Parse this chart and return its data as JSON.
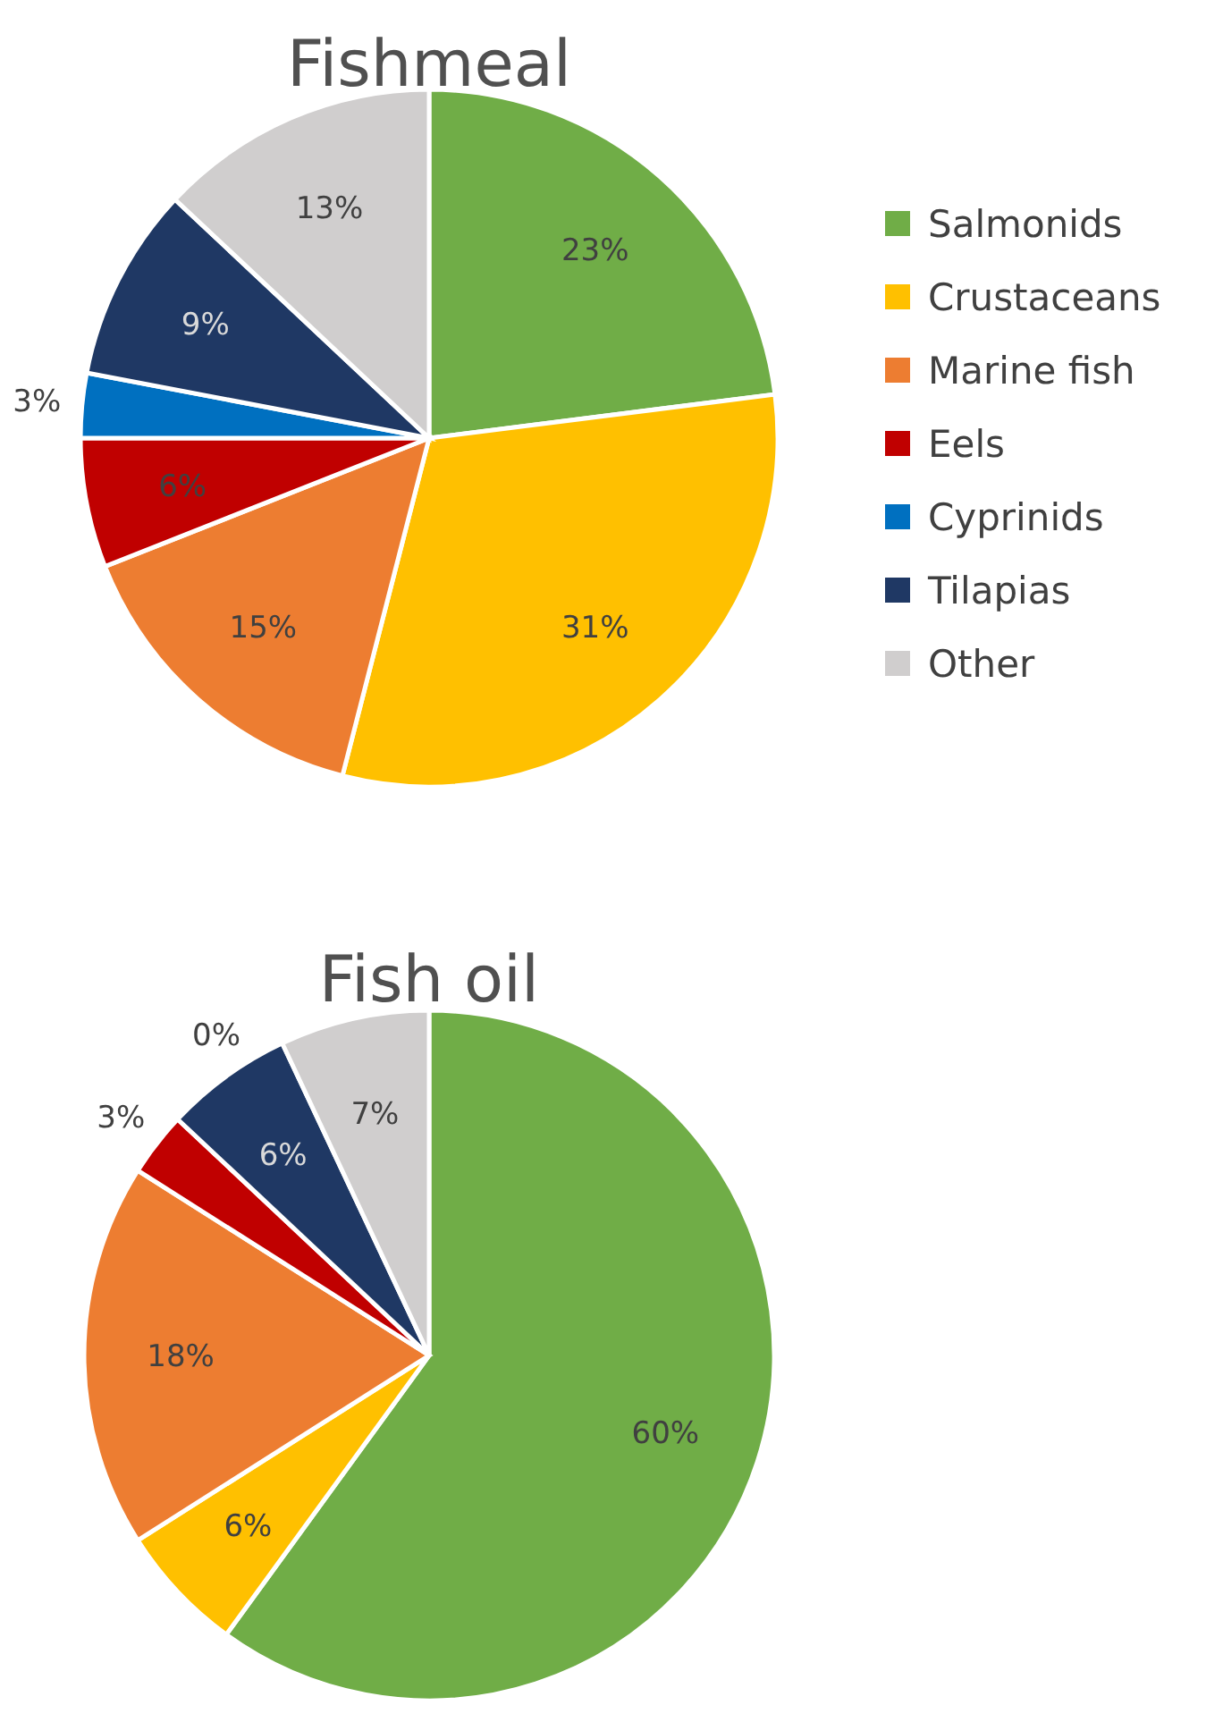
{
  "chart_data": [
    {
      "type": "pie",
      "title": "Fishmeal",
      "categories": [
        "Salmonids",
        "Crustaceans",
        "Marine fish",
        "Eels",
        "Cyprinids",
        "Tilapias",
        "Other"
      ],
      "values": [
        23,
        31,
        15,
        6,
        3,
        9,
        13
      ],
      "value_labels": [
        "23%",
        "31%",
        "15%",
        "6%",
        "3%",
        "9%",
        "13%"
      ],
      "colors": [
        "#70ad47",
        "#ffc000",
        "#ed7d31",
        "#c00000",
        "#0070c0",
        "#1f3864",
        "#d0cece"
      ],
      "legend": "right"
    },
    {
      "type": "pie",
      "title": "Fish oil",
      "categories": [
        null,
        null,
        null,
        null,
        null,
        null,
        null
      ],
      "values": [
        60,
        6,
        18,
        3,
        0,
        6,
        7
      ],
      "value_labels": [
        "60%",
        "6%",
        "18%",
        "3%",
        "0%",
        "6%",
        "7%"
      ],
      "colors": [
        "#70ad47",
        "#ffc000",
        "#ed7d31",
        "#c00000",
        "#0070c0",
        "#1f3864",
        "#d0cece"
      ]
    }
  ]
}
